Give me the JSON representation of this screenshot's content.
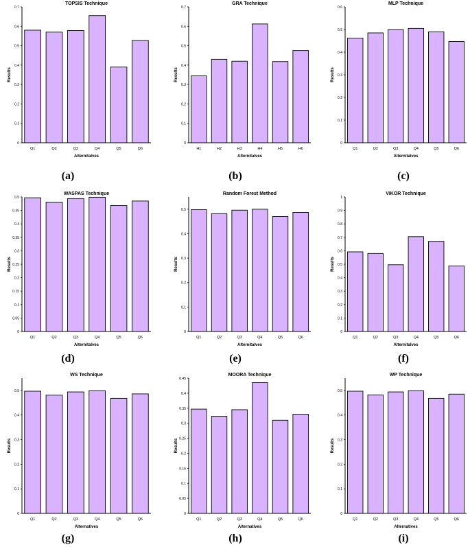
{
  "figure": {
    "panels": [
      "(a)",
      "(b)",
      "(c)",
      "(d)",
      "(e)",
      "(f)",
      "(g)",
      "(h)",
      "(i)"
    ]
  },
  "colors": {
    "bar_fill": "#d9b3ff",
    "bar_stroke": "#000000",
    "axis": "#000000"
  },
  "chart_data": [
    {
      "type": "bar",
      "title": "TOPSIS Technique",
      "xlabel": "Alternitalves",
      "ylabel": "Results",
      "categories": [
        "Q1",
        "Q2",
        "Q3",
        "Q4",
        "Q5",
        "Q6"
      ],
      "values": [
        0.58,
        0.57,
        0.578,
        0.655,
        0.39,
        0.527
      ],
      "ylim": [
        0,
        0.7
      ],
      "yticks": [
        "0",
        "0.1",
        "0.2",
        "0.3",
        "0.4",
        "0.5",
        "0.6",
        "0.7"
      ],
      "ytick_values": [
        0,
        0.1,
        0.2,
        0.3,
        0.4,
        0.5,
        0.6,
        0.7
      ]
    },
    {
      "type": "bar",
      "title": "GRA Technique",
      "xlabel": "Alternitalves",
      "ylabel": "Results",
      "categories": [
        "H1",
        "H2",
        "H3",
        "H4",
        "H5",
        "H6"
      ],
      "values": [
        0.345,
        0.43,
        0.42,
        0.612,
        0.418,
        0.475
      ],
      "ylim": [
        0,
        0.7
      ],
      "yticks": [
        "0",
        "0.1",
        "0.2",
        "0.3",
        "0.4",
        "0.5",
        "0.6",
        "0.7"
      ],
      "ytick_values": [
        0,
        0.1,
        0.2,
        0.3,
        0.4,
        0.5,
        0.6,
        0.7
      ]
    },
    {
      "type": "bar",
      "title": "MLP Technique",
      "xlabel": "Alternitalves",
      "ylabel": "Results",
      "categories": [
        "Q1",
        "Q2",
        "Q3",
        "Q4",
        "Q5",
        "Q6"
      ],
      "values": [
        0.462,
        0.485,
        0.5,
        0.505,
        0.49,
        0.447
      ],
      "ylim": [
        0,
        0.6
      ],
      "yticks": [
        "0",
        "0.1",
        "0.2",
        "0.3",
        "0.4",
        "0.5",
        "0.6"
      ],
      "ytick_values": [
        0,
        0.1,
        0.2,
        0.3,
        0.4,
        0.5,
        0.6
      ]
    },
    {
      "type": "bar",
      "title": "WASPAS Technique",
      "xlabel": "Alternitalves",
      "ylabel": "Results",
      "categories": [
        "Q1",
        "Q2",
        "Q3",
        "Q4",
        "Q5",
        "Q6"
      ],
      "values": [
        0.497,
        0.481,
        0.494,
        0.499,
        0.468,
        0.485
      ],
      "ylim": [
        0,
        0.5
      ],
      "yticks": [
        "0",
        "0.05",
        "0.1",
        "0.15",
        "0.2",
        "0.25",
        "0.3",
        "0.35",
        "0.4",
        "0.45",
        "0.5"
      ],
      "ytick_values": [
        0,
        0.05,
        0.1,
        0.15,
        0.2,
        0.25,
        0.3,
        0.35,
        0.4,
        0.45,
        0.5
      ]
    },
    {
      "type": "bar",
      "title": "Random Forest Method",
      "xlabel": "Alternitalves",
      "ylabel": "Results",
      "categories": [
        "Q1",
        "Q2",
        "Q3",
        "Q4",
        "Q5",
        "Q6"
      ],
      "values": [
        0.498,
        0.482,
        0.496,
        0.5,
        0.47,
        0.487
      ],
      "ylim": [
        0,
        0.55
      ],
      "yticks": [
        "0",
        "0.1",
        "0.2",
        "0.3",
        "0.4",
        "0.5"
      ],
      "ytick_values": [
        0,
        0.1,
        0.2,
        0.3,
        0.4,
        0.5
      ]
    },
    {
      "type": "bar",
      "title": "VIKOR Technique",
      "xlabel": "Alternitalves",
      "ylabel": "Results",
      "categories": [
        "Q1",
        "Q2",
        "Q3",
        "Q4",
        "Q5",
        "Q6"
      ],
      "values": [
        0.592,
        0.58,
        0.496,
        0.705,
        0.67,
        0.487
      ],
      "ylim": [
        0,
        1
      ],
      "yticks": [
        "0",
        "0.1",
        "0.2",
        "0.3",
        "0.4",
        "0.5",
        "0.6",
        "0.7",
        "0.8",
        "0.9",
        "1"
      ],
      "ytick_values": [
        0,
        0.1,
        0.2,
        0.3,
        0.4,
        0.5,
        0.6,
        0.7,
        0.8,
        0.9,
        1
      ]
    },
    {
      "type": "bar",
      "title": "WS Technique",
      "xlabel": "Alternatives",
      "ylabel": "Results",
      "categories": [
        "Q1",
        "Q2",
        "Q3",
        "Q4",
        "Q5",
        "Q6"
      ],
      "values": [
        0.497,
        0.481,
        0.494,
        0.499,
        0.468,
        0.486
      ],
      "ylim": [
        0,
        0.55
      ],
      "yticks": [
        "0",
        "0.1",
        "0.2",
        "0.3",
        "0.4",
        "0.5"
      ],
      "ytick_values": [
        0,
        0.1,
        0.2,
        0.3,
        0.4,
        0.5
      ]
    },
    {
      "type": "bar",
      "title": "MOORA Technique",
      "xlabel": "Alternatives",
      "ylabel": "Results",
      "categories": [
        "Q1",
        "Q2",
        "Q3",
        "Q4",
        "Q5",
        "Q6"
      ],
      "values": [
        0.347,
        0.323,
        0.345,
        0.435,
        0.31,
        0.33
      ],
      "ylim": [
        0,
        0.45
      ],
      "yticks": [
        "0",
        "0.05",
        "0.1",
        "0.15",
        "0.2",
        "0.25",
        "0.3",
        "0.35",
        "0.4",
        "0.45"
      ],
      "ytick_values": [
        0,
        0.05,
        0.1,
        0.15,
        0.2,
        0.25,
        0.3,
        0.35,
        0.4,
        0.45
      ]
    },
    {
      "type": "bar",
      "title": "WP Technique",
      "xlabel": "Alternatives",
      "ylabel": "Results",
      "categories": [
        "Q1",
        "Q2",
        "Q3",
        "Q4",
        "Q5",
        "Q6"
      ],
      "values": [
        0.497,
        0.482,
        0.494,
        0.499,
        0.468,
        0.485
      ],
      "ylim": [
        0,
        0.55
      ],
      "yticks": [
        "0",
        "0.1",
        "0.2",
        "0.3",
        "0.4",
        "0.5"
      ],
      "ytick_values": [
        0,
        0.1,
        0.2,
        0.3,
        0.4,
        0.5
      ]
    }
  ]
}
